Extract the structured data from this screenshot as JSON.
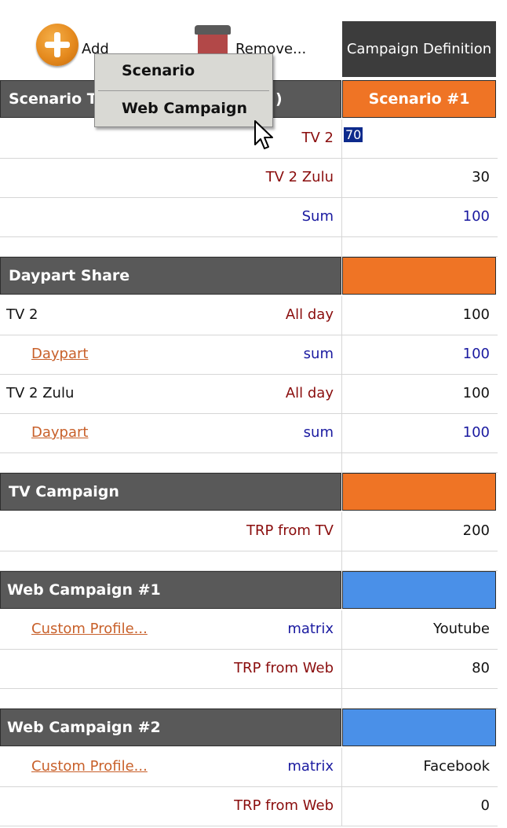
{
  "toolbar": {
    "add_label": "Add",
    "remove_label": "Remove...",
    "campaign_definition": "Campaign Definition"
  },
  "context_menu": {
    "items": [
      "Scenario",
      "Web Campaign"
    ]
  },
  "scenario_section": {
    "header_visible_left": "Scenario T",
    "header_visible_right": ")",
    "column_title": "Scenario #1",
    "rows": [
      {
        "category": "TV 2",
        "value": "70",
        "editing": true
      },
      {
        "category": "TV 2 Zulu",
        "value": "30"
      },
      {
        "category": "Sum",
        "value": "100"
      }
    ]
  },
  "daypart_section": {
    "title": "Daypart Share",
    "rows": [
      {
        "name": "TV 2",
        "category": "All day",
        "value": "100"
      },
      {
        "link": "Daypart",
        "category": "sum",
        "value": "100"
      },
      {
        "name": "TV 2 Zulu",
        "category": "All day",
        "value": "100"
      },
      {
        "link": "Daypart",
        "category": "sum",
        "value": "100"
      }
    ]
  },
  "tv_campaign_section": {
    "title": "TV Campaign",
    "rows": [
      {
        "category": "TRP from TV",
        "value": "200"
      }
    ]
  },
  "web_campaign_1": {
    "title": "Web Campaign #1",
    "rows": [
      {
        "link": "Custom Profile...",
        "category": "matrix",
        "value": "Youtube"
      },
      {
        "category": "TRP from Web",
        "value": "80"
      }
    ]
  },
  "web_campaign_2": {
    "title": "Web Campaign #2",
    "rows": [
      {
        "link": "Custom Profile...",
        "category": "matrix",
        "value": "Facebook"
      },
      {
        "category": "TRP from Web",
        "value": "0"
      }
    ]
  },
  "colors": {
    "header_gray": "#595959",
    "scenario_orange": "#ef7425",
    "web_blue": "#4a90e8",
    "link_orange": "#c8602a",
    "dark_red": "#8a0d0d",
    "navy": "#1a1aa0",
    "selection_blue": "#0d2a8c"
  },
  "icons": {
    "add": "add-plus-icon",
    "remove": "trash-icon",
    "cursor": "mouse-pointer-icon"
  }
}
